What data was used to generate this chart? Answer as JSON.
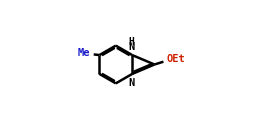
{
  "background_color": "#ffffff",
  "line_color": "#000000",
  "line_width": 1.8,
  "font_size": 7.5,
  "figsize": [
    2.75,
    1.29
  ],
  "dpi": 100,
  "Me_color": "#1a1acc",
  "N_color": "#000000",
  "H_color": "#000000",
  "OEt_color": "#cc2200",
  "xlim": [
    0.0,
    1.0
  ],
  "ylim": [
    0.0,
    1.0
  ]
}
